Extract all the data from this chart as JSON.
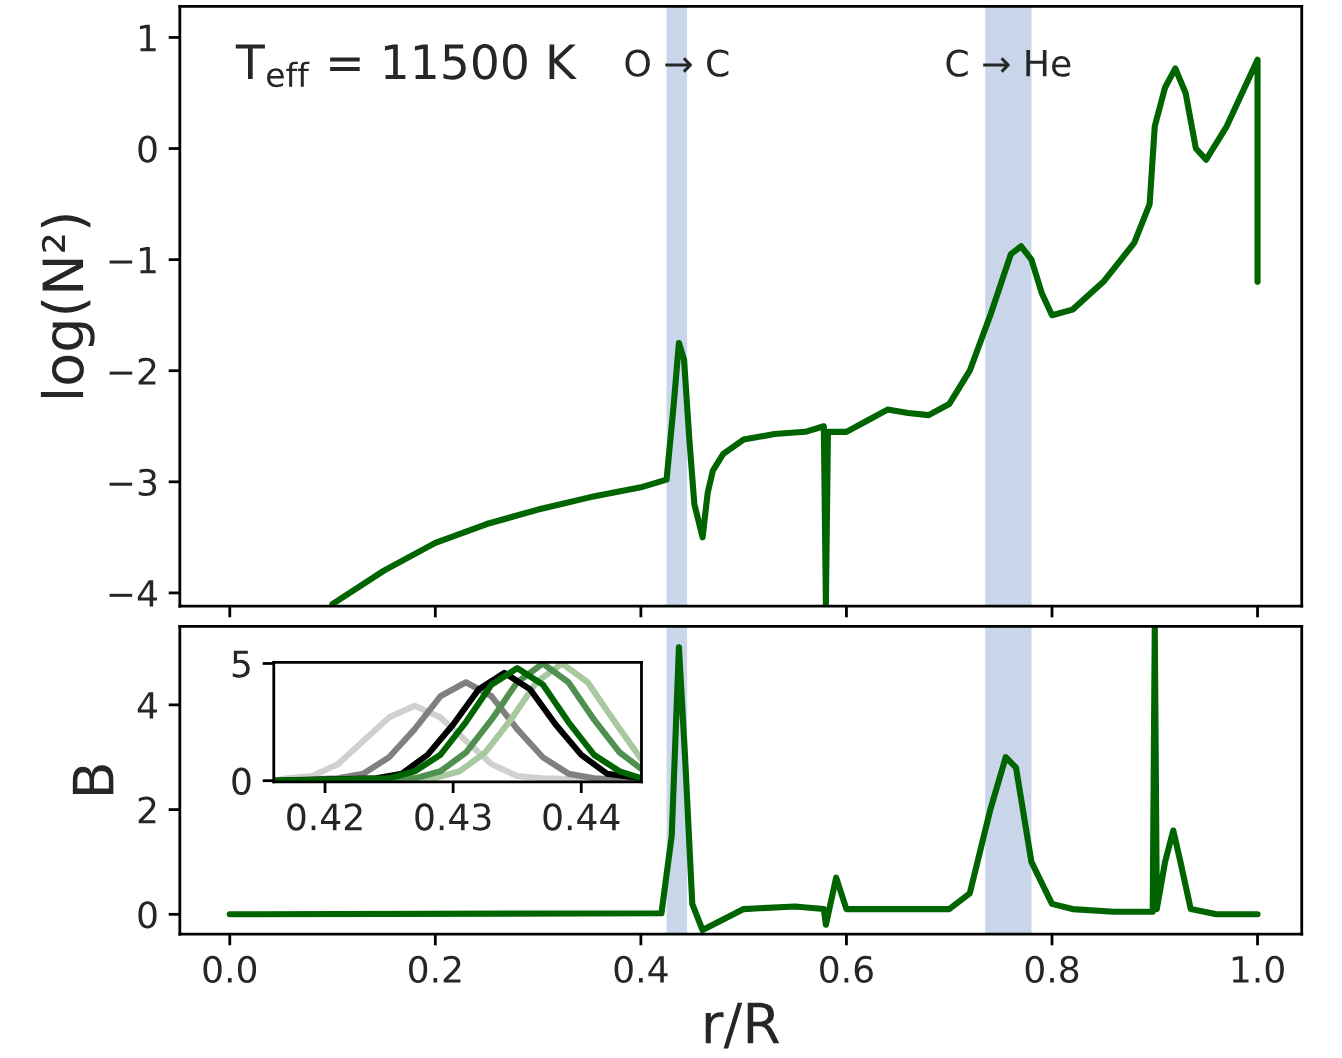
{
  "chart_data": [
    {
      "type": "line",
      "ylabel": "log(N²)",
      "annotations": [
        "T$_{eff}$ = 11500 K"
      ],
      "xlim": [
        -0.0486,
        1.043
      ],
      "ylim": [
        -4.12,
        1.28
      ],
      "xticks": [
        {
          "value": 0,
          "label": null
        },
        {
          "value": 0.2,
          "label": null
        },
        {
          "value": 0.4,
          "label": null
        },
        {
          "value": 0.6,
          "label": null
        },
        {
          "value": 0.8,
          "label": null
        },
        {
          "value": 1,
          "label": null
        }
      ],
      "yticks": [
        {
          "value": -4,
          "label": "−4"
        },
        {
          "value": -3,
          "label": "−3"
        },
        {
          "value": -2,
          "label": "−2"
        },
        {
          "value": -1,
          "label": "−1"
        },
        {
          "value": 0,
          "label": "0"
        },
        {
          "value": 1,
          "label": "1"
        }
      ],
      "tick_labels": "y",
      "grid": false,
      "bands": [
        {
          "axis": "x",
          "from": 0.425,
          "to": 0.445,
          "label": "O → C",
          "color": "#c9d6ea"
        },
        {
          "axis": "x",
          "from": 0.735,
          "to": 0.78,
          "label": "C → He",
          "color": "#c9d6ea"
        }
      ],
      "series": [
        {
          "color": "#006400",
          "x": [
            0.1,
            0.15,
            0.2,
            0.25,
            0.3,
            0.35,
            0.4,
            0.425,
            0.432,
            0.437,
            0.442,
            0.447,
            0.452,
            0.46,
            0.465,
            0.47,
            0.48,
            0.5,
            0.53,
            0.56,
            0.578,
            0.58,
            0.582,
            0.6,
            0.62,
            0.64,
            0.66,
            0.68,
            0.7,
            0.72,
            0.74,
            0.76,
            0.77,
            0.78,
            0.79,
            0.8,
            0.82,
            0.85,
            0.88,
            0.895,
            0.9,
            0.91,
            0.92,
            0.93,
            0.94,
            0.95,
            0.97,
            0.99,
            1.0,
            1.0
          ],
          "values": [
            -4.1,
            -3.8,
            -3.55,
            -3.38,
            -3.25,
            -3.14,
            -3.05,
            -2.98,
            -2.3,
            -1.75,
            -1.9,
            -2.6,
            -3.2,
            -3.5,
            -3.1,
            -2.9,
            -2.75,
            -2.62,
            -2.57,
            -2.55,
            -2.5,
            -4.1,
            -2.55,
            -2.55,
            -2.45,
            -2.35,
            -2.38,
            -2.4,
            -2.3,
            -2.0,
            -1.5,
            -0.95,
            -0.88,
            -1.0,
            -1.3,
            -1.5,
            -1.45,
            -1.2,
            -0.85,
            -0.5,
            0.2,
            0.55,
            0.72,
            0.5,
            0.0,
            -0.1,
            0.2,
            0.6,
            0.8,
            -1.2
          ]
        }
      ]
    },
    {
      "type": "line",
      "xlabel": "r/R",
      "ylabel": "B",
      "xlim": [
        -0.0486,
        1.043
      ],
      "ylim": [
        -0.38,
        5.5
      ],
      "xticks": [
        {
          "value": 0,
          "label": "0.0"
        },
        {
          "value": 0.2,
          "label": "0.2"
        },
        {
          "value": 0.4,
          "label": "0.4"
        },
        {
          "value": 0.6,
          "label": "0.6"
        },
        {
          "value": 0.8,
          "label": "0.8"
        },
        {
          "value": 1,
          "label": "1.0"
        }
      ],
      "yticks": [
        0,
        2,
        4
      ],
      "grid": false,
      "bands": [
        {
          "axis": "x",
          "from": 0.425,
          "to": 0.445,
          "color": "#c9d6ea"
        },
        {
          "axis": "x",
          "from": 0.735,
          "to": 0.78,
          "color": "#c9d6ea"
        }
      ],
      "series": [
        {
          "color": "#006400",
          "x": [
            0,
            0.42,
            0.43,
            0.437,
            0.443,
            0.45,
            0.46,
            0.47,
            0.5,
            0.55,
            0.578,
            0.58,
            0.59,
            0.6,
            0.65,
            0.7,
            0.72,
            0.74,
            0.755,
            0.765,
            0.78,
            0.8,
            0.82,
            0.86,
            0.898,
            0.9,
            0.902,
            0.91,
            0.918,
            0.925,
            0.935,
            0.96,
            1.0
          ],
          "values": [
            0,
            0.02,
            1.5,
            5.1,
            3,
            0.2,
            -0.3,
            -0.2,
            0.1,
            0.15,
            0.1,
            -0.2,
            0.7,
            0.1,
            0.1,
            0.1,
            0.4,
            2.0,
            3.0,
            2.8,
            1.0,
            0.2,
            0.1,
            0.05,
            0.05,
            5.5,
            0.1,
            1.0,
            1.6,
            1.0,
            0.1,
            0.0,
            0.0
          ]
        }
      ]
    },
    {
      "type": "line",
      "xlim": [
        0.416,
        0.4447
      ],
      "ylim": [
        -0.05,
        5.05
      ],
      "xticks": [
        0.42,
        0.43,
        0.44
      ],
      "yticks": [
        0,
        5
      ],
      "grid": false,
      "series": [
        {
          "color": "#d0d0d0",
          "x": [
            0.416,
            0.417,
            0.419,
            0.421,
            0.423,
            0.425,
            0.427,
            0.429,
            0.431,
            0.433,
            0.435,
            0.437,
            0.4447
          ],
          "values": [
            0,
            0.1,
            0.2,
            0.7,
            1.7,
            2.7,
            3.2,
            2.7,
            1.7,
            0.7,
            0.2,
            0.1,
            0
          ]
        },
        {
          "color": "#808080",
          "x": [
            0.416,
            0.421,
            0.423,
            0.425,
            0.427,
            0.429,
            0.431,
            0.433,
            0.435,
            0.437,
            0.439,
            0.441,
            0.4447
          ],
          "values": [
            0,
            0.1,
            0.3,
            1.0,
            2.2,
            3.6,
            4.2,
            3.6,
            2.2,
            1.0,
            0.3,
            0.1,
            0
          ]
        },
        {
          "color": "#a8c8a0",
          "x": [
            0.416,
            0.4285,
            0.4305,
            0.4325,
            0.4345,
            0.4365,
            0.4385,
            0.4405,
            0.4425,
            0.4447
          ],
          "values": [
            0,
            0.1,
            0.4,
            1.2,
            2.6,
            4.2,
            5.0,
            4.2,
            2.6,
            0.9
          ]
        },
        {
          "color": "#4f8f4f",
          "x": [
            0.416,
            0.427,
            0.429,
            0.431,
            0.433,
            0.435,
            0.437,
            0.439,
            0.441,
            0.443,
            0.4447
          ],
          "values": [
            0,
            0.1,
            0.4,
            1.2,
            2.6,
            4.2,
            5.0,
            4.2,
            2.6,
            1.2,
            0.5
          ]
        },
        {
          "color": "#000000",
          "x": [
            0.416,
            0.424,
            0.426,
            0.428,
            0.43,
            0.432,
            0.434,
            0.436,
            0.438,
            0.44,
            0.442,
            0.4447
          ],
          "values": [
            0,
            0.1,
            0.3,
            1.1,
            2.4,
            3.9,
            4.6,
            3.9,
            2.4,
            1.1,
            0.3,
            0.1
          ]
        },
        {
          "color": "#006400",
          "x": [
            0.416,
            0.425,
            0.427,
            0.429,
            0.431,
            0.433,
            0.435,
            0.437,
            0.439,
            0.441,
            0.443,
            0.4447
          ],
          "values": [
            0,
            0.1,
            0.4,
            1.1,
            2.5,
            4.1,
            4.8,
            4.1,
            2.5,
            1.1,
            0.4,
            0.1
          ]
        }
      ]
    }
  ]
}
